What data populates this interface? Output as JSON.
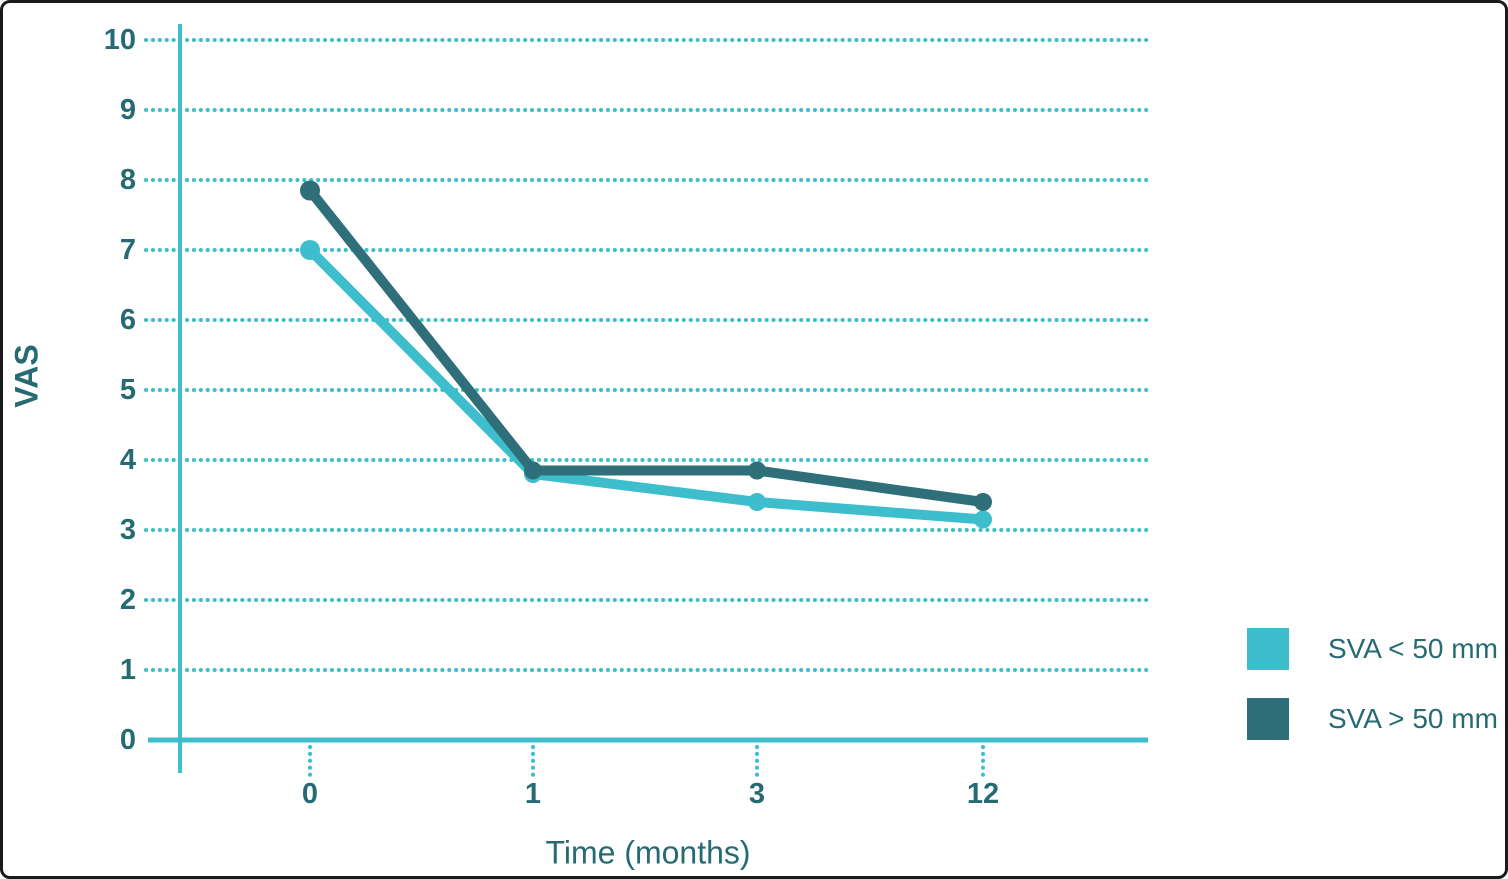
{
  "frame": {
    "border_color": "#1a1a1a",
    "background_color": "#ffffff"
  },
  "colors": {
    "axis": "#3EBECD",
    "grid": "#3EBECD",
    "text": "#266A74"
  },
  "chart_data": {
    "type": "line",
    "title": "",
    "xlabel": "Time (months)",
    "ylabel": "VAS",
    "categories": [
      "0",
      "1",
      "3",
      "12"
    ],
    "y_ticks": [
      0,
      1,
      2,
      3,
      4,
      5,
      6,
      7,
      8,
      9,
      10
    ],
    "ylim": [
      0,
      10
    ],
    "grid": "horizontal-dotted",
    "legend_position": "bottom-right",
    "series": [
      {
        "name": "SVA < 50 mm",
        "color": "#3EBECD",
        "values": [
          7.0,
          3.8,
          3.4,
          3.15
        ]
      },
      {
        "name": "SVA > 50 mm",
        "color": "#2E6F79",
        "values": [
          7.85,
          3.85,
          3.85,
          3.4
        ]
      }
    ]
  }
}
